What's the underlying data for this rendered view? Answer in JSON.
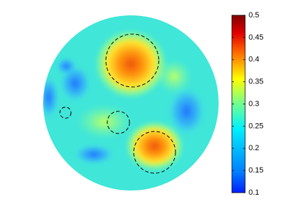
{
  "chart_data": {
    "type": "heatmap",
    "colorbar": {
      "clim": [
        0.1,
        0.5
      ],
      "ticks": [
        0.1,
        0.15,
        0.2,
        0.25,
        0.3,
        0.35,
        0.4,
        0.45,
        0.5
      ]
    }
  }
}
